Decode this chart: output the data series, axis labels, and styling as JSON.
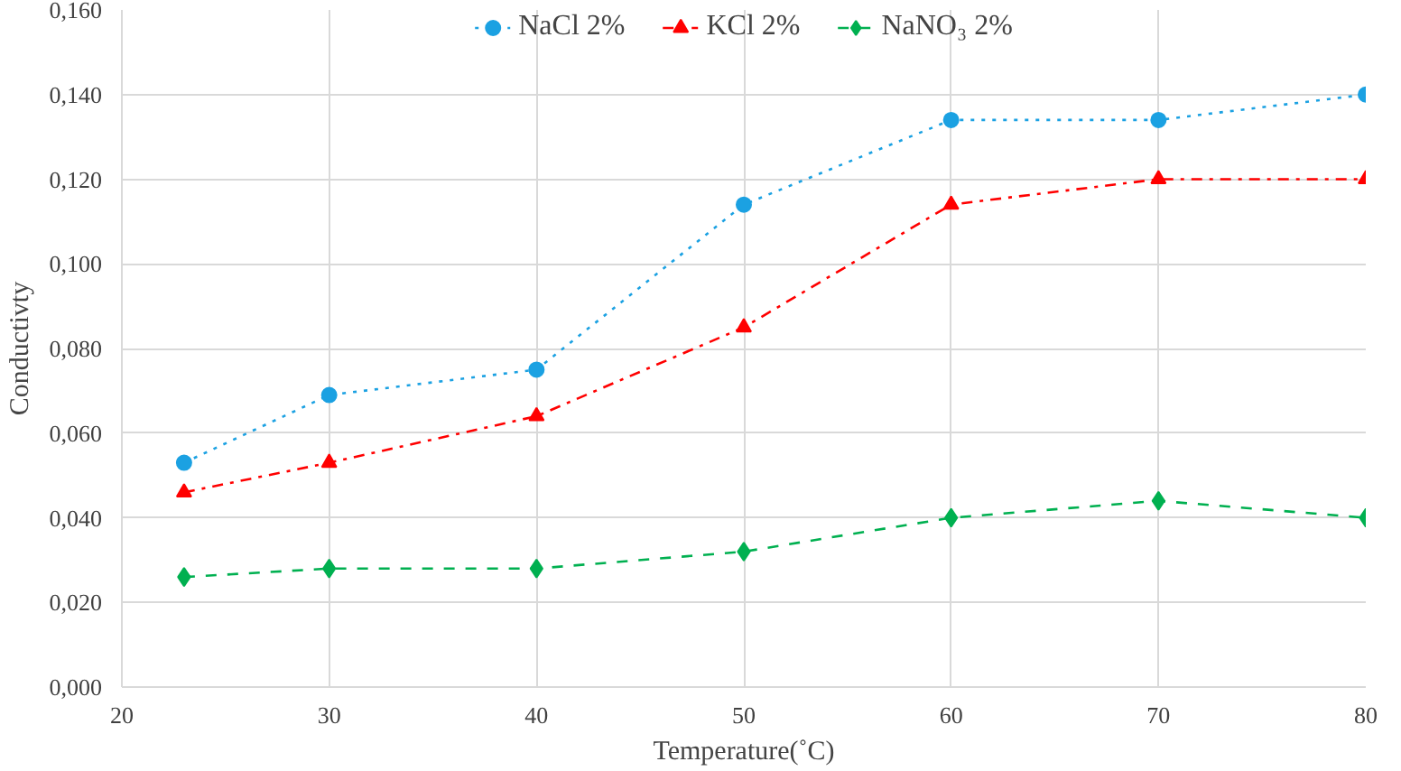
{
  "chart_data": {
    "type": "line",
    "xlabel": "Temperature(˚C)",
    "ylabel": "Conductivty",
    "x": [
      23,
      30,
      40,
      50,
      60,
      70,
      80
    ],
    "series": [
      {
        "name": "NaCl 2%",
        "color": "#1ba1e2",
        "marker": "circle",
        "line_style": "dotted",
        "values": [
          0.053,
          0.069,
          0.075,
          0.114,
          0.134,
          0.134,
          0.14
        ]
      },
      {
        "name": "KCl 2%",
        "color": "#ff0000",
        "marker": "triangle",
        "line_style": "dashdot",
        "values": [
          0.046,
          0.053,
          0.064,
          0.085,
          0.114,
          0.12,
          0.12
        ]
      },
      {
        "name": "NaNO₃ 2%",
        "color": "#00b050",
        "marker": "diamond",
        "line_style": "dashed",
        "values": [
          0.026,
          0.028,
          0.028,
          0.032,
          0.04,
          0.044,
          0.04
        ]
      }
    ],
    "xlim": [
      20,
      80
    ],
    "xticks": [
      20,
      30,
      40,
      50,
      60,
      70,
      80
    ],
    "ylim": [
      0,
      0.16
    ],
    "yticks": [
      {
        "value": 0,
        "label": "0,000"
      },
      {
        "value": 0.02,
        "label": "0,020"
      },
      {
        "value": 0.04,
        "label": "0,040"
      },
      {
        "value": 0.06,
        "label": "0,060"
      },
      {
        "value": 0.08,
        "label": "0,080"
      },
      {
        "value": 0.1,
        "label": "0,100"
      },
      {
        "value": 0.12,
        "label": "0,120"
      },
      {
        "value": 0.14,
        "label": "0,140"
      },
      {
        "value": 0.16,
        "label": "0,160"
      }
    ],
    "grid": true,
    "legend": "top"
  }
}
